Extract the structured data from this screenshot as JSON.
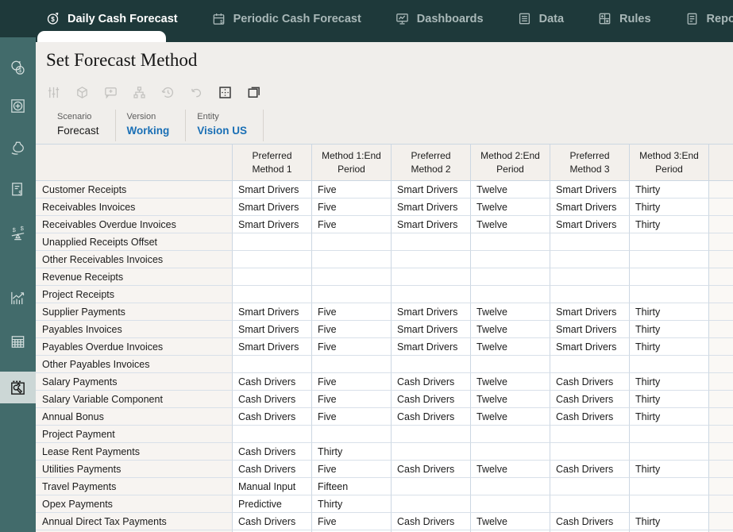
{
  "topnav": {
    "items": [
      {
        "label": "Daily Cash Forecast",
        "icon": "dollar-refresh-icon",
        "active": true
      },
      {
        "label": "Periodic Cash Forecast",
        "icon": "calendar-dollar-icon",
        "active": false
      },
      {
        "label": "Dashboards",
        "icon": "monitor-chart-icon",
        "active": false
      },
      {
        "label": "Data",
        "icon": "data-list-icon",
        "active": false
      },
      {
        "label": "Rules",
        "icon": "rules-grid-icon",
        "active": false
      },
      {
        "label": "Reports",
        "icon": "report-document-icon",
        "active": false
      }
    ]
  },
  "sidebar": {
    "icons": [
      "coins-icon",
      "target-circle-icon",
      "money-bag-icon",
      "invoice-dollar-icon",
      "cash-balance-scale-icon",
      "growth-chart-icon",
      "data-grid-icon",
      "forecast-settings-wrench-icon"
    ],
    "selected_index": 7
  },
  "page": {
    "title": "Set Forecast Method"
  },
  "toolbar": {
    "icons": [
      {
        "name": "adjust-sliders-icon",
        "enabled": false
      },
      {
        "name": "cube-icon",
        "enabled": false
      },
      {
        "name": "comment-add-icon",
        "enabled": false
      },
      {
        "name": "hierarchy-icon",
        "enabled": false
      },
      {
        "name": "history-icon",
        "enabled": false
      },
      {
        "name": "undo-icon",
        "enabled": false
      },
      {
        "name": "grid-select-icon",
        "enabled": true
      },
      {
        "name": "open-window-icon",
        "enabled": true
      }
    ]
  },
  "pov": {
    "items": [
      {
        "label": "Scenario",
        "value": "Forecast",
        "link": false
      },
      {
        "label": "Version",
        "value": "Working",
        "link": true
      },
      {
        "label": "Entity",
        "value": "Vision US",
        "link": true
      }
    ]
  },
  "grid": {
    "columns": [
      "Preferred Method 1",
      "Method 1:End Period",
      "Preferred Method 2",
      "Method 2:End Period",
      "Preferred Method 3",
      "Method 3:End Period"
    ],
    "rows": [
      {
        "label": "Customer Receipts",
        "values": [
          "Smart Drivers",
          "Five",
          "Smart Drivers",
          "Twelve",
          "Smart Drivers",
          "Thirty"
        ]
      },
      {
        "label": "Receivables Invoices",
        "values": [
          "Smart Drivers",
          "Five",
          "Smart Drivers",
          "Twelve",
          "Smart Drivers",
          "Thirty"
        ]
      },
      {
        "label": "Receivables Overdue Invoices",
        "values": [
          "Smart Drivers",
          "Five",
          "Smart Drivers",
          "Twelve",
          "Smart Drivers",
          "Thirty"
        ]
      },
      {
        "label": "Unapplied Receipts Offset",
        "values": [
          "",
          "",
          "",
          "",
          "",
          ""
        ]
      },
      {
        "label": "Other Receivables Invoices",
        "values": [
          "",
          "",
          "",
          "",
          "",
          ""
        ]
      },
      {
        "label": "Revenue Receipts",
        "values": [
          "",
          "",
          "",
          "",
          "",
          ""
        ]
      },
      {
        "label": "Project Receipts",
        "values": [
          "",
          "",
          "",
          "",
          "",
          ""
        ]
      },
      {
        "label": "Supplier Payments",
        "values": [
          "Smart Drivers",
          "Five",
          "Smart Drivers",
          "Twelve",
          "Smart Drivers",
          "Thirty"
        ]
      },
      {
        "label": "Payables Invoices",
        "values": [
          "Smart Drivers",
          "Five",
          "Smart Drivers",
          "Twelve",
          "Smart Drivers",
          "Thirty"
        ]
      },
      {
        "label": "Payables Overdue Invoices",
        "values": [
          "Smart Drivers",
          "Five",
          "Smart Drivers",
          "Twelve",
          "Smart Drivers",
          "Thirty"
        ]
      },
      {
        "label": "Other Payables Invoices",
        "values": [
          "",
          "",
          "",
          "",
          "",
          ""
        ]
      },
      {
        "label": "Salary Payments",
        "values": [
          "Cash Drivers",
          "Five",
          "Cash Drivers",
          "Twelve",
          "Cash Drivers",
          "Thirty"
        ]
      },
      {
        "label": "Salary Variable Component",
        "values": [
          "Cash Drivers",
          "Five",
          "Cash Drivers",
          "Twelve",
          "Cash Drivers",
          "Thirty"
        ]
      },
      {
        "label": "Annual Bonus",
        "values": [
          "Cash Drivers",
          "Five",
          "Cash Drivers",
          "Twelve",
          "Cash Drivers",
          "Thirty"
        ]
      },
      {
        "label": "Project Payment",
        "values": [
          "",
          "",
          "",
          "",
          "",
          ""
        ]
      },
      {
        "label": "Lease Rent Payments",
        "values": [
          "Cash Drivers",
          "Thirty",
          "",
          "",
          "",
          ""
        ]
      },
      {
        "label": "Utilities Payments",
        "values": [
          "Cash Drivers",
          "Five",
          "Cash Drivers",
          "Twelve",
          "Cash Drivers",
          "Thirty"
        ]
      },
      {
        "label": "Travel Payments",
        "values": [
          "Manual Input",
          "Fifteen",
          "",
          "",
          "",
          ""
        ]
      },
      {
        "label": "Opex Payments",
        "values": [
          "Predictive",
          "Thirty",
          "",
          "",
          "",
          ""
        ]
      },
      {
        "label": "Annual Direct Tax Payments",
        "values": [
          "Cash Drivers",
          "Five",
          "Cash Drivers",
          "Twelve",
          "Cash Drivers",
          "Thirty"
        ]
      }
    ]
  },
  "colors": {
    "topnav_bg": "#1e393a",
    "sidebar_bg": "#426b6b",
    "selected_item_bg": "#ccd7d6",
    "content_bg": "#f0eeeb",
    "link_blue": "#1a6fb5",
    "grid_border": "#ccd7e2"
  }
}
